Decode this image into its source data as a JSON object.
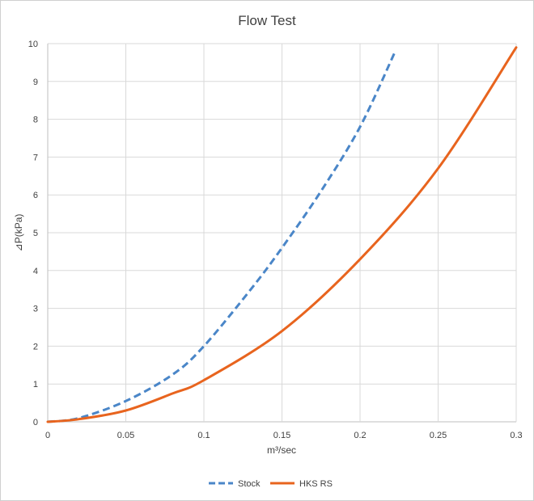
{
  "chart_data": {
    "type": "line",
    "title": "Flow Test",
    "xlabel": "m³/sec",
    "ylabel": "⊿P(kPa)",
    "xlim": [
      0,
      0.3
    ],
    "ylim": [
      0,
      10
    ],
    "x_ticks": [
      "0",
      "0.05",
      "0.1",
      "0.15",
      "0.2",
      "0.25",
      "0.3"
    ],
    "y_ticks": [
      "0",
      "1",
      "2",
      "3",
      "4",
      "5",
      "6",
      "7",
      "8",
      "9",
      "10"
    ],
    "grid": true,
    "legend_position": "bottom",
    "series": [
      {
        "name": "Stock",
        "color": "#4a86c8",
        "style": "dashed",
        "points": [
          [
            0,
            0
          ],
          [
            0.02,
            0.1
          ],
          [
            0.05,
            0.55
          ],
          [
            0.08,
            1.25
          ],
          [
            0.1,
            2.0
          ],
          [
            0.13,
            3.5
          ],
          [
            0.15,
            4.6
          ],
          [
            0.175,
            6.1
          ],
          [
            0.2,
            7.8
          ],
          [
            0.222,
            9.75
          ]
        ]
      },
      {
        "name": "HKS RS",
        "color": "#e8641e",
        "style": "solid",
        "points": [
          [
            0,
            0
          ],
          [
            0.02,
            0.07
          ],
          [
            0.05,
            0.3
          ],
          [
            0.08,
            0.75
          ],
          [
            0.1,
            1.1
          ],
          [
            0.15,
            2.4
          ],
          [
            0.2,
            4.3
          ],
          [
            0.25,
            6.7
          ],
          [
            0.3,
            9.9
          ]
        ]
      }
    ]
  }
}
